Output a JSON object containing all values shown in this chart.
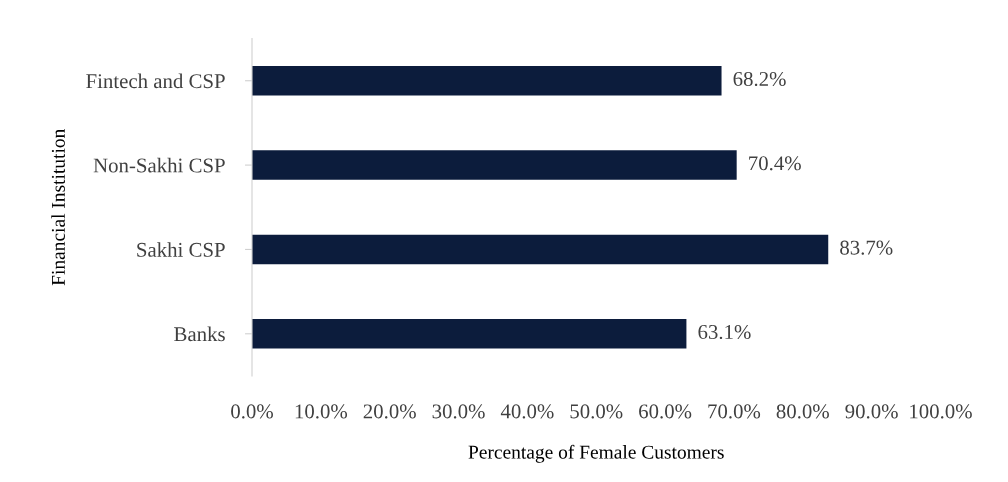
{
  "chart_data": {
    "type": "bar",
    "orientation": "horizontal",
    "xlabel": "Percentage of Female Customers",
    "ylabel": "Financial Institution",
    "categories": [
      "Fintech and CSP",
      "Non-Sakhi CSP",
      "Sakhi CSP",
      "Banks"
    ],
    "values": [
      68.2,
      70.4,
      83.7,
      63.1
    ],
    "color": "#0c1c3c",
    "value_labels": [
      "68.2%",
      "70.4%",
      "83.7%",
      "63.1%"
    ],
    "xlim": [
      0,
      100
    ],
    "xticks": [
      {
        "value": 0,
        "label": "0.0%"
      },
      {
        "value": 10,
        "label": "10.0%"
      },
      {
        "value": 20,
        "label": "20.0%"
      },
      {
        "value": 30,
        "label": "30.0%"
      },
      {
        "value": 40,
        "label": "40.0%"
      },
      {
        "value": 50,
        "label": "50.0%"
      },
      {
        "value": 60,
        "label": "60.0%"
      },
      {
        "value": 70,
        "label": "70.0%"
      },
      {
        "value": 80,
        "label": "80.0%"
      },
      {
        "value": 90,
        "label": "90.0%"
      },
      {
        "value": 100,
        "label": "100.0%"
      }
    ],
    "grid": false
  }
}
